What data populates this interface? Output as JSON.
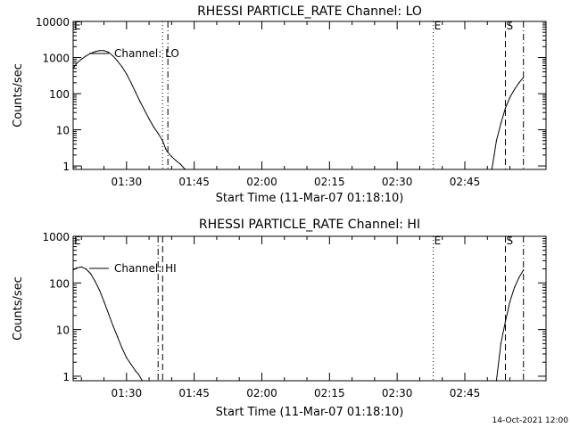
{
  "footer": {
    "timestamp": "14-Oct-2021 12:00"
  },
  "chart_data": [
    {
      "type": "line",
      "title": "RHESSI PARTICLE_RATE Channel: LO",
      "xlabel": "Start Time (11-Mar-07 01:18:10)",
      "ylabel": "Counts/sec",
      "y_scale": "log",
      "ylim": [
        0.8,
        10000
      ],
      "y_ticks": [
        1,
        10,
        100,
        1000,
        10000
      ],
      "y_tick_labels": [
        "1",
        "10",
        "100",
        "1000",
        "10000"
      ],
      "xlim": [
        "01:18:10",
        "03:03:00"
      ],
      "x_ticks": [
        "01:30",
        "01:45",
        "02:00",
        "02:15",
        "02:30",
        "02:45"
      ],
      "grid": false,
      "legend": {
        "label": "Channel: LO",
        "placement": "top-left"
      },
      "markers": [
        {
          "label": "E",
          "time": "01:18:10",
          "style": "solid"
        },
        {
          "label": "",
          "time": "01:38:00",
          "style": "dotted"
        },
        {
          "label": "",
          "time": "01:39:10",
          "style": "dashdot"
        },
        {
          "label": "E",
          "time": "02:38:00",
          "style": "dotted"
        },
        {
          "label": "S",
          "time": "02:54:00",
          "style": "dashed"
        },
        {
          "label": "",
          "time": "02:58:00",
          "style": "dashdot"
        }
      ],
      "series": [
        {
          "segments": [
            {
              "x": [
                "01:18:10",
                "01:19:00",
                "01:20:00",
                "01:21:00",
                "01:22:00",
                "01:23:00",
                "01:24:00",
                "01:25:00",
                "01:26:00",
                "01:27:00",
                "01:28:00",
                "01:29:00",
                "01:30:00",
                "01:31:00",
                "01:32:00",
                "01:33:00",
                "01:34:00",
                "01:35:00",
                "01:36:00",
                "01:37:00",
                "01:38:00",
                "01:38:40",
                "01:39:00",
                "01:40:00",
                "01:41:00",
                "01:42:00",
                "01:43:00"
              ],
              "y": [
                500,
                700,
                900,
                1100,
                1300,
                1450,
                1550,
                1550,
                1400,
                1100,
                800,
                550,
                350,
                200,
                110,
                60,
                35,
                20,
                12,
                8,
                5,
                3,
                2.5,
                1.8,
                1.4,
                1.1,
                0.8
              ]
            },
            {
              "x": [
                "02:51:00",
                "02:51:30",
                "02:52:00",
                "02:53:00",
                "02:54:00",
                "02:55:00",
                "02:56:00",
                "02:57:00",
                "02:58:00"
              ],
              "y": [
                0.8,
                2,
                5,
                15,
                40,
                80,
                130,
                200,
                280
              ]
            }
          ]
        }
      ]
    },
    {
      "type": "line",
      "title": "RHESSI PARTICLE_RATE Channel: HI",
      "xlabel": "Start Time (11-Mar-07 01:18:10)",
      "ylabel": "Counts/sec",
      "y_scale": "log",
      "ylim": [
        0.8,
        1000
      ],
      "y_ticks": [
        1,
        10,
        100,
        1000
      ],
      "y_tick_labels": [
        "1",
        "10",
        "100",
        "1000"
      ],
      "xlim": [
        "01:18:10",
        "03:03:00"
      ],
      "x_ticks": [
        "01:30",
        "01:45",
        "02:00",
        "02:15",
        "02:30",
        "02:45"
      ],
      "grid": false,
      "legend": {
        "label": "Channel: HI",
        "placement": "top-left"
      },
      "markers": [
        {
          "label": "E",
          "time": "01:18:10",
          "style": "solid"
        },
        {
          "label": "",
          "time": "01:37:00",
          "style": "dashdot"
        },
        {
          "label": "",
          "time": "01:38:00",
          "style": "dashed"
        },
        {
          "label": "E",
          "time": "02:38:00",
          "style": "dotted"
        },
        {
          "label": "S",
          "time": "02:54:00",
          "style": "dashed"
        },
        {
          "label": "",
          "time": "02:58:00",
          "style": "dashdot"
        }
      ],
      "series": [
        {
          "segments": [
            {
              "x": [
                "01:18:10",
                "01:19:00",
                "01:20:00",
                "01:21:00",
                "01:22:00",
                "01:23:00",
                "01:24:00",
                "01:25:00",
                "01:26:00",
                "01:27:00",
                "01:28:00",
                "01:29:00",
                "01:30:00",
                "01:31:00",
                "01:32:00",
                "01:32:40",
                "01:33:30"
              ],
              "y": [
                190,
                210,
                220,
                200,
                160,
                110,
                70,
                40,
                22,
                12,
                7,
                4,
                2.5,
                1.8,
                1.3,
                1.1,
                0.8
              ]
            },
            {
              "x": [
                "02:52:00",
                "02:53:00",
                "02:54:00",
                "02:55:00",
                "02:56:00",
                "02:57:00",
                "02:58:00"
              ],
              "y": [
                0.8,
                5,
                15,
                40,
                80,
                130,
                190
              ]
            }
          ]
        }
      ]
    }
  ]
}
